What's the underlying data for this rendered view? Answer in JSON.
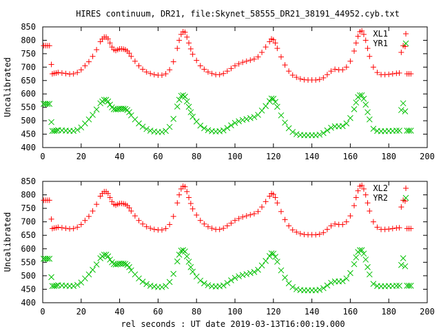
{
  "chart_data": [
    {
      "type": "scatter",
      "title": "HIRES continuum, DR21, file:Skynet_58555_DR21_38191_44952.cyb.txt",
      "xlabel": "",
      "ylabel": "Uncalibrated",
      "xlim": [
        0,
        200
      ],
      "ylim": [
        400,
        850
      ],
      "xticks": [
        0,
        20,
        40,
        60,
        80,
        100,
        120,
        140,
        160,
        180,
        200
      ],
      "yticks": [
        400,
        450,
        500,
        550,
        600,
        650,
        700,
        750,
        800,
        850
      ],
      "grid": false,
      "legend": "top-right",
      "series": [
        {
          "name": "XL1",
          "color": "#ff0000",
          "marker": "plus",
          "x": [
            0.5,
            1.5,
            2.5,
            3.5,
            4.5,
            5,
            6,
            7,
            8,
            10,
            12,
            14,
            16,
            18,
            20,
            22,
            24,
            26,
            28,
            30,
            31,
            32,
            33,
            34,
            35,
            36,
            37,
            38,
            39,
            40,
            41,
            42,
            43,
            44,
            45,
            46,
            48,
            50,
            52,
            54,
            56,
            58,
            60,
            62,
            64,
            66,
            68,
            70,
            71,
            72,
            73,
            74,
            75,
            76,
            77,
            78,
            80,
            82,
            84,
            86,
            88,
            90,
            92,
            94,
            96,
            98,
            100,
            102,
            104,
            106,
            108,
            110,
            112,
            114,
            116,
            118,
            119,
            120,
            121,
            122,
            124,
            126,
            128,
            130,
            132,
            134,
            136,
            138,
            140,
            142,
            144,
            146,
            148,
            150,
            152,
            154,
            156,
            158,
            160,
            162,
            163,
            164,
            165,
            166,
            167,
            168,
            169,
            170,
            172,
            174,
            176,
            178,
            180,
            182,
            184,
            185.5,
            186.5,
            187.5,
            188.5,
            189.5,
            190.5,
            191.5
          ],
          "y": [
            780,
            780,
            780,
            780,
            710,
            675,
            677,
            678,
            680,
            678,
            676,
            674,
            675,
            680,
            690,
            705,
            720,
            740,
            765,
            795,
            805,
            812,
            812,
            805,
            790,
            775,
            765,
            762,
            765,
            768,
            768,
            767,
            765,
            760,
            752,
            740,
            722,
            705,
            692,
            682,
            676,
            672,
            670,
            670,
            675,
            690,
            720,
            770,
            800,
            822,
            832,
            830,
            812,
            790,
            768,
            748,
            725,
            705,
            692,
            682,
            676,
            672,
            672,
            676,
            685,
            695,
            705,
            712,
            718,
            722,
            726,
            730,
            738,
            755,
            775,
            795,
            805,
            802,
            790,
            770,
            738,
            708,
            685,
            670,
            662,
            656,
            653,
            652,
            652,
            652,
            654,
            660,
            672,
            685,
            692,
            690,
            690,
            700,
            722,
            760,
            790,
            815,
            832,
            835,
            822,
            800,
            770,
            740,
            700,
            680,
            672,
            672,
            673,
            675,
            677,
            678,
            755,
            780,
            777,
            675,
            675,
            675
          ]
        },
        {
          "name": "YR1",
          "color": "#00c000",
          "marker": "cross",
          "x": [
            0.5,
            1.5,
            2.5,
            3.5,
            4.5,
            5,
            6,
            7,
            8,
            10,
            12,
            14,
            16,
            18,
            20,
            22,
            24,
            26,
            28,
            30,
            31,
            32,
            33,
            34,
            35,
            36,
            37,
            38,
            39,
            40,
            41,
            42,
            43,
            44,
            45,
            46,
            48,
            50,
            52,
            54,
            56,
            58,
            60,
            62,
            64,
            66,
            68,
            70,
            71,
            72,
            73,
            74,
            75,
            76,
            77,
            78,
            80,
            82,
            84,
            86,
            88,
            90,
            92,
            94,
            96,
            98,
            100,
            102,
            104,
            106,
            108,
            110,
            112,
            114,
            116,
            118,
            119,
            120,
            121,
            122,
            124,
            126,
            128,
            130,
            132,
            134,
            136,
            138,
            140,
            142,
            144,
            146,
            148,
            150,
            152,
            154,
            156,
            158,
            160,
            162,
            163,
            164,
            165,
            166,
            167,
            168,
            169,
            170,
            172,
            174,
            176,
            178,
            180,
            182,
            184,
            185.5,
            186.5,
            187.5,
            188.5,
            189.5,
            190.5,
            191.5
          ],
          "y": [
            563,
            563,
            563,
            563,
            495,
            462,
            462,
            463,
            465,
            464,
            463,
            462,
            462,
            466,
            475,
            490,
            505,
            522,
            542,
            565,
            572,
            578,
            578,
            572,
            560,
            550,
            543,
            542,
            543,
            545,
            545,
            545,
            544,
            540,
            532,
            520,
            505,
            490,
            478,
            469,
            463,
            460,
            458,
            458,
            462,
            477,
            507,
            553,
            578,
            593,
            595,
            590,
            572,
            552,
            532,
            515,
            497,
            482,
            472,
            465,
            461,
            460,
            461,
            464,
            473,
            483,
            492,
            498,
            503,
            506,
            510,
            514,
            522,
            538,
            555,
            573,
            583,
            582,
            570,
            552,
            520,
            493,
            472,
            458,
            450,
            447,
            446,
            446,
            446,
            446,
            448,
            454,
            464,
            474,
            479,
            479,
            480,
            490,
            510,
            543,
            568,
            588,
            595,
            595,
            582,
            560,
            532,
            505,
            470,
            462,
            461,
            461,
            462,
            462,
            463,
            463,
            540,
            565,
            535,
            463,
            463,
            463
          ]
        }
      ]
    },
    {
      "type": "scatter",
      "title": "",
      "xlabel": "rel seconds : UT date 2019-03-13T16:00:19.000",
      "ylabel": "Uncalibrated",
      "xlim": [
        0,
        200
      ],
      "ylim": [
        400,
        850
      ],
      "xticks": [
        0,
        20,
        40,
        60,
        80,
        100,
        120,
        140,
        160,
        180,
        200
      ],
      "yticks": [
        400,
        450,
        500,
        550,
        600,
        650,
        700,
        750,
        800,
        850
      ],
      "grid": false,
      "legend": "top-right",
      "series": [
        {
          "name": "XL2",
          "color": "#ff0000",
          "marker": "plus",
          "x": [
            0.5,
            1.5,
            2.5,
            3.5,
            4.5,
            5,
            6,
            7,
            8,
            10,
            12,
            14,
            16,
            18,
            20,
            22,
            24,
            26,
            28,
            30,
            31,
            32,
            33,
            34,
            35,
            36,
            37,
            38,
            39,
            40,
            41,
            42,
            43,
            44,
            45,
            46,
            48,
            50,
            52,
            54,
            56,
            58,
            60,
            62,
            64,
            66,
            68,
            70,
            71,
            72,
            73,
            74,
            75,
            76,
            77,
            78,
            80,
            82,
            84,
            86,
            88,
            90,
            92,
            94,
            96,
            98,
            100,
            102,
            104,
            106,
            108,
            110,
            112,
            114,
            116,
            118,
            119,
            120,
            121,
            122,
            124,
            126,
            128,
            130,
            132,
            134,
            136,
            138,
            140,
            142,
            144,
            146,
            148,
            150,
            152,
            154,
            156,
            158,
            160,
            162,
            163,
            164,
            165,
            166,
            167,
            168,
            169,
            170,
            172,
            174,
            176,
            178,
            180,
            182,
            184,
            185.5,
            186.5,
            187.5,
            188.5,
            189.5,
            190.5,
            191.5
          ],
          "y": [
            780,
            780,
            780,
            780,
            710,
            675,
            677,
            678,
            680,
            678,
            676,
            674,
            675,
            680,
            690,
            705,
            720,
            740,
            765,
            795,
            805,
            812,
            812,
            805,
            790,
            775,
            765,
            762,
            765,
            768,
            768,
            767,
            765,
            760,
            752,
            740,
            722,
            705,
            692,
            682,
            676,
            672,
            670,
            670,
            675,
            690,
            720,
            770,
            800,
            822,
            832,
            830,
            812,
            790,
            768,
            748,
            725,
            705,
            692,
            682,
            676,
            672,
            672,
            676,
            685,
            695,
            705,
            712,
            718,
            722,
            726,
            730,
            738,
            755,
            775,
            795,
            805,
            802,
            790,
            770,
            738,
            708,
            685,
            670,
            662,
            656,
            653,
            652,
            652,
            652,
            654,
            660,
            672,
            685,
            692,
            690,
            690,
            700,
            722,
            760,
            790,
            815,
            832,
            835,
            822,
            800,
            770,
            740,
            700,
            680,
            672,
            672,
            673,
            675,
            677,
            678,
            755,
            780,
            777,
            675,
            675,
            675
          ]
        },
        {
          "name": "YR2",
          "color": "#00c000",
          "marker": "cross",
          "x": [
            0.5,
            1.5,
            2.5,
            3.5,
            4.5,
            5,
            6,
            7,
            8,
            10,
            12,
            14,
            16,
            18,
            20,
            22,
            24,
            26,
            28,
            30,
            31,
            32,
            33,
            34,
            35,
            36,
            37,
            38,
            39,
            40,
            41,
            42,
            43,
            44,
            45,
            46,
            48,
            50,
            52,
            54,
            56,
            58,
            60,
            62,
            64,
            66,
            68,
            70,
            71,
            72,
            73,
            74,
            75,
            76,
            77,
            78,
            80,
            82,
            84,
            86,
            88,
            90,
            92,
            94,
            96,
            98,
            100,
            102,
            104,
            106,
            108,
            110,
            112,
            114,
            116,
            118,
            119,
            120,
            121,
            122,
            124,
            126,
            128,
            130,
            132,
            134,
            136,
            138,
            140,
            142,
            144,
            146,
            148,
            150,
            152,
            154,
            156,
            158,
            160,
            162,
            163,
            164,
            165,
            166,
            167,
            168,
            169,
            170,
            172,
            174,
            176,
            178,
            180,
            182,
            184,
            185.5,
            186.5,
            187.5,
            188.5,
            189.5,
            190.5,
            191.5
          ],
          "y": [
            563,
            563,
            563,
            563,
            495,
            462,
            462,
            463,
            465,
            464,
            463,
            462,
            462,
            466,
            475,
            490,
            505,
            522,
            542,
            565,
            572,
            578,
            578,
            572,
            560,
            550,
            543,
            542,
            543,
            545,
            545,
            545,
            544,
            540,
            532,
            520,
            505,
            490,
            478,
            469,
            463,
            460,
            458,
            458,
            462,
            477,
            507,
            553,
            578,
            593,
            595,
            590,
            572,
            552,
            532,
            515,
            497,
            482,
            472,
            465,
            461,
            460,
            461,
            464,
            473,
            483,
            492,
            498,
            503,
            506,
            510,
            514,
            522,
            538,
            555,
            573,
            583,
            582,
            570,
            552,
            520,
            493,
            472,
            458,
            450,
            447,
            446,
            446,
            446,
            446,
            448,
            454,
            464,
            474,
            479,
            479,
            480,
            490,
            510,
            543,
            568,
            588,
            595,
            595,
            582,
            560,
            532,
            505,
            470,
            462,
            461,
            461,
            462,
            462,
            463,
            463,
            540,
            565,
            535,
            463,
            463,
            463
          ]
        }
      ]
    }
  ]
}
